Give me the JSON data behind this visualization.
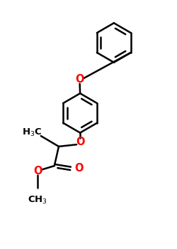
{
  "bond_color": "#000000",
  "oxygen_color": "#ff0000",
  "background": "#ffffff",
  "linewidth": 1.8,
  "figsize": [
    2.5,
    3.5
  ],
  "dpi": 100,
  "xlim": [
    0,
    10
  ],
  "ylim": [
    0,
    14
  ]
}
